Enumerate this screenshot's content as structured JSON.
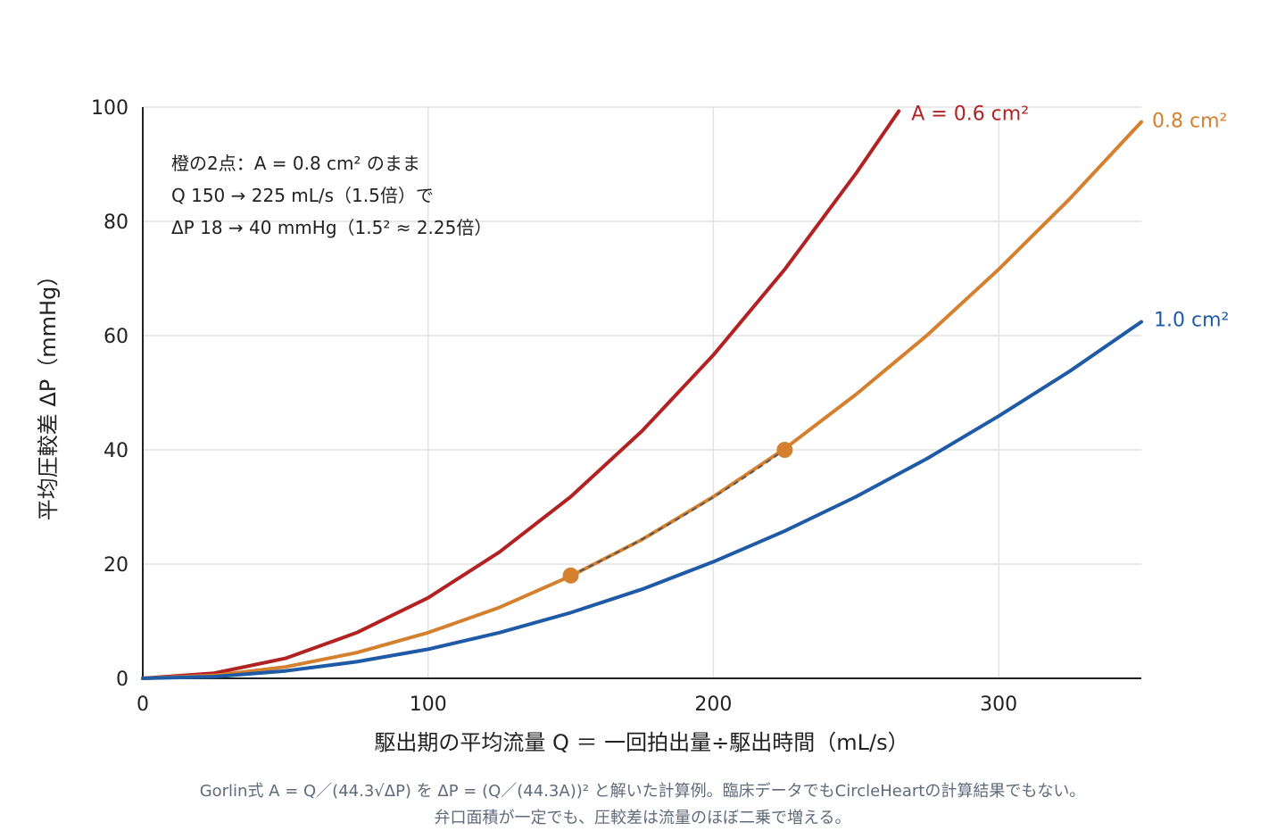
{
  "chart_data": {
    "type": "line",
    "title": "",
    "xlabel": "駆出期の平均流量 Q ＝ 一回拍出量÷駆出時間（mL/s）",
    "ylabel": "平均圧較差 ΔP（mmHg）",
    "xlim": [
      0,
      350
    ],
    "ylim": [
      0,
      100
    ],
    "xticks": [
      0,
      100,
      200,
      300
    ],
    "yticks": [
      0,
      20,
      40,
      60,
      80,
      100
    ],
    "grid": true,
    "series": [
      {
        "name": "A = 0.6 cm²",
        "color": "#b22222",
        "x": [
          0,
          25,
          50,
          75,
          100,
          125,
          150,
          175,
          200,
          225,
          250,
          265
        ],
        "y": [
          0,
          0.9,
          3.5,
          8.0,
          14.1,
          22.1,
          31.8,
          43.3,
          56.6,
          71.6,
          88.4,
          99.3
        ]
      },
      {
        "name": "0.8 cm²",
        "color": "#d4802f",
        "x": [
          0,
          25,
          50,
          75,
          100,
          125,
          150,
          175,
          200,
          225,
          250,
          275,
          300,
          325,
          350
        ],
        "y": [
          0,
          0.5,
          2.0,
          4.5,
          8.0,
          12.4,
          17.9,
          24.3,
          31.8,
          40.2,
          49.7,
          60.1,
          71.6,
          84.0,
          97.4
        ]
      },
      {
        "name": "1.0 cm²",
        "color": "#1f5aa6",
        "x": [
          0,
          25,
          50,
          75,
          100,
          125,
          150,
          175,
          200,
          225,
          250,
          275,
          300,
          325,
          350
        ],
        "y": [
          0,
          0.3,
          1.3,
          2.9,
          5.1,
          8.0,
          11.5,
          15.6,
          20.4,
          25.8,
          31.8,
          38.5,
          45.9,
          53.8,
          62.4
        ]
      }
    ],
    "highlight": {
      "color": "#d4802f",
      "points": [
        {
          "x": 150,
          "y": 18
        },
        {
          "x": 225,
          "y": 40
        }
      ],
      "trend_color": "#555555"
    },
    "annotation": [
      "橙の2点：A = 0.8 cm² のまま",
      "Q 150 → 225 mL/s（1.5倍）で",
      "ΔP 18 → 40 mmHg（1.5² ≈ 2.25倍）"
    ]
  },
  "caption": {
    "line1": "Gorlin式 A = Q／(44.3√ΔP) を ΔP = (Q／(44.3A))² と解いた計算例。臨床データでもCircleHeartの計算結果でもない。",
    "line2": "弁口面積が一定でも、圧較差は流量のほぼ二乗で増える。"
  }
}
